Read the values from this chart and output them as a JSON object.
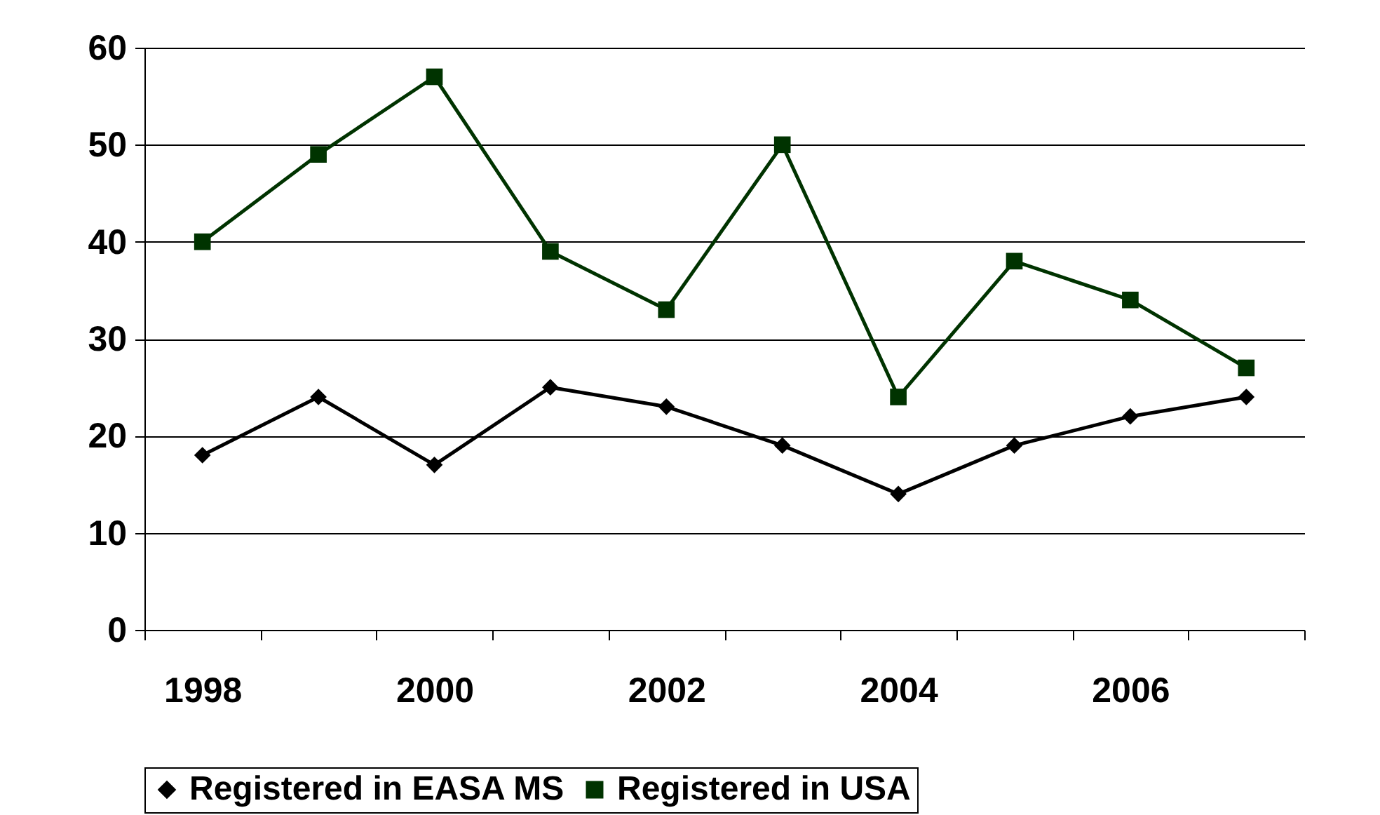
{
  "chart_data": {
    "type": "line",
    "categories": [
      "1998",
      null,
      "2000",
      null,
      "2002",
      null,
      "2004",
      null,
      "2006",
      null
    ],
    "series": [
      {
        "name": "Registered in EASA MS",
        "color": "#000000",
        "marker": "diamond",
        "values": [
          18,
          24,
          17,
          25,
          23,
          19,
          14,
          19,
          22,
          24
        ]
      },
      {
        "name": "Registered in USA",
        "color": "#003300",
        "marker": "square",
        "values": [
          40,
          49,
          57,
          39,
          33,
          50,
          24,
          38,
          34,
          27
        ]
      }
    ],
    "ylim": [
      0,
      60
    ],
    "yticks": [
      0,
      10,
      20,
      30,
      40,
      50,
      60
    ],
    "grid": "y",
    "legend": "bottom",
    "line_style": "solid"
  }
}
